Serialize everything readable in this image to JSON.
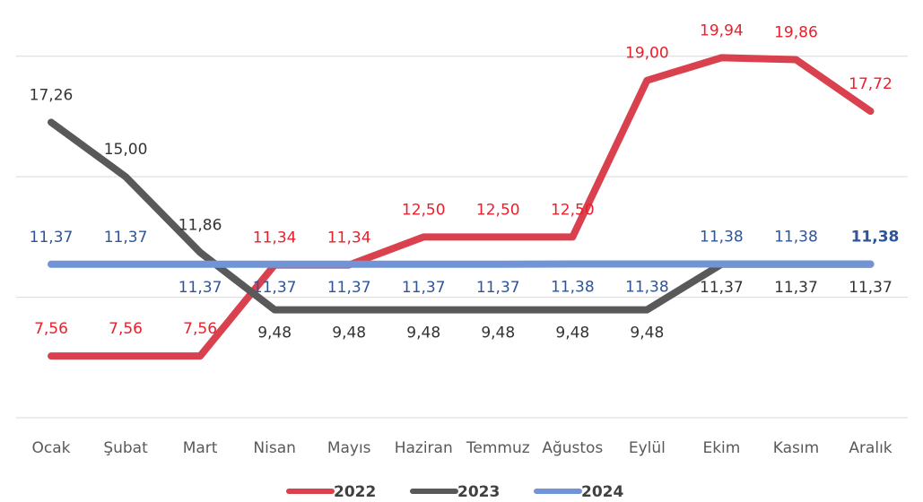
{
  "chart_data": {
    "type": "line",
    "categories": [
      "Ocak",
      "Şubat",
      "Mart",
      "Nisan",
      "Mayıs",
      "Haziran",
      "Temmuz",
      "Ağustos",
      "Eylül",
      "Ekim",
      "Kasım",
      "Aralık"
    ],
    "series": [
      {
        "name": "2022",
        "color": "#d9414e",
        "label_color": "#e8202c",
        "values": [
          7.56,
          7.56,
          7.56,
          11.34,
          11.34,
          12.5,
          12.5,
          12.5,
          19.0,
          19.94,
          19.86,
          17.72
        ],
        "value_labels": [
          "7,56",
          "7,56",
          "7,56",
          "11,34",
          "11,34",
          "12,50",
          "12,50",
          "12,50",
          "19,00",
          "19,94",
          "19,86",
          "17,72"
        ]
      },
      {
        "name": "2023",
        "color": "#595959",
        "label_color": "#333333",
        "values": [
          17.26,
          15.0,
          11.86,
          9.48,
          9.48,
          9.48,
          9.48,
          9.48,
          9.48,
          11.37,
          11.37,
          11.37
        ],
        "value_labels": [
          "17,26",
          "15,00",
          "11,86",
          "9,48",
          "9,48",
          "9,48",
          "9,48",
          "9,48",
          "9,48",
          "11,37",
          "11,37",
          "11,37"
        ]
      },
      {
        "name": "2024",
        "color": "#7094d6",
        "label_color": "#2f5597",
        "values": [
          11.37,
          11.37,
          11.37,
          11.37,
          11.37,
          11.37,
          11.37,
          11.38,
          11.38,
          11.38,
          11.38,
          11.38
        ],
        "value_labels": [
          "11,37",
          "11,37",
          "11,37",
          "11,37",
          "11,37",
          "11,37",
          "11,37",
          "11,38",
          "11,38",
          "11,38",
          "11,38",
          "11,38"
        ]
      }
    ],
    "ylim": [
      5,
      22
    ],
    "yticks": [
      5,
      10,
      15,
      20
    ],
    "grid": true,
    "legend": "bottom"
  }
}
